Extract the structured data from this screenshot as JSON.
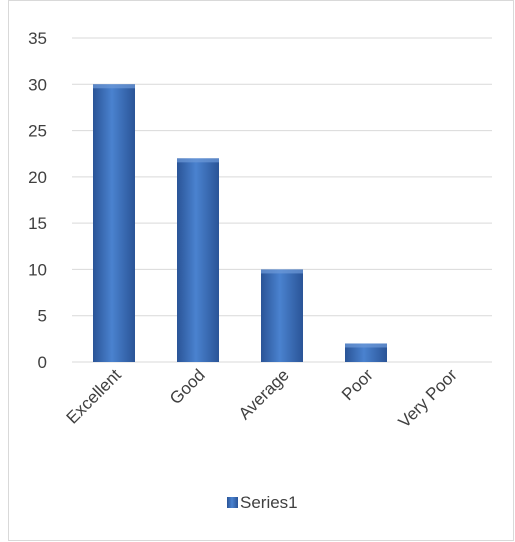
{
  "chart_data": {
    "type": "bar",
    "categories": [
      "Excellent",
      "Good",
      "Average",
      "Poor",
      "Very Poor"
    ],
    "series": [
      {
        "name": "Series1",
        "values": [
          30,
          22,
          10,
          2,
          0
        ]
      }
    ],
    "ylim": [
      0,
      35
    ],
    "yticks": [
      0,
      5,
      10,
      15,
      20,
      25,
      30,
      35
    ],
    "grid": true,
    "legend_position": "bottom",
    "colors": {
      "bar": "#3f74be",
      "bar_dark": "#2a5497",
      "grid": "#d9d9d9",
      "text": "#404040"
    }
  }
}
